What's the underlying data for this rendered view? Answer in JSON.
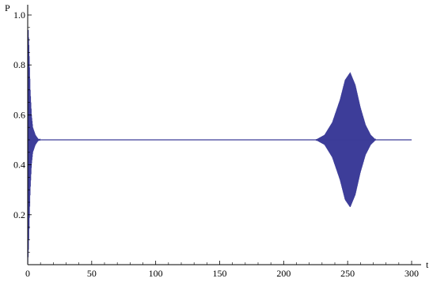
{
  "chart_data": {
    "type": "line",
    "title": "",
    "xlabel": "t",
    "ylabel": "P",
    "xlim": [
      0,
      300
    ],
    "ylim": [
      0,
      1.0
    ],
    "grid": false,
    "legend": "none",
    "x_ticks": [
      0,
      50,
      100,
      150,
      200,
      250,
      300
    ],
    "y_ticks": [
      0.2,
      0.4,
      0.6,
      0.8,
      1.0
    ],
    "x_tick_labels": [
      "0",
      "50",
      "100",
      "150",
      "200",
      "250",
      "300"
    ],
    "y_tick_labels": [
      "0.2",
      "0.4",
      "0.6",
      "0.8",
      "1.0"
    ],
    "series": [
      {
        "color": "#3d3d99",
        "baseline": 0.5,
        "description_points": {
          "t": [
            0,
            0.5,
            1,
            2,
            3,
            4,
            6,
            8,
            10,
            50,
            100,
            150,
            200,
            225,
            232,
            238,
            244,
            248,
            252,
            256,
            260,
            264,
            268,
            272,
            300
          ],
          "upper_envelope": [
            0.0,
            0.94,
            0.88,
            0.7,
            0.6,
            0.55,
            0.52,
            0.505,
            0.5,
            0.5,
            0.5,
            0.5,
            0.5,
            0.5,
            0.52,
            0.57,
            0.66,
            0.74,
            0.77,
            0.72,
            0.63,
            0.56,
            0.52,
            0.5,
            0.5
          ],
          "lower_envelope": [
            0.0,
            0.04,
            0.12,
            0.3,
            0.4,
            0.45,
            0.48,
            0.495,
            0.5,
            0.5,
            0.5,
            0.5,
            0.5,
            0.5,
            0.48,
            0.43,
            0.34,
            0.26,
            0.23,
            0.28,
            0.37,
            0.44,
            0.48,
            0.5,
            0.5
          ]
        }
      }
    ]
  }
}
